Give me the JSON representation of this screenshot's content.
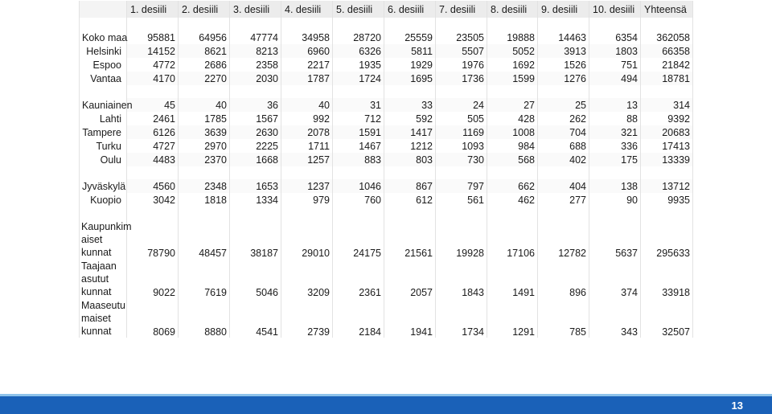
{
  "table": {
    "headers": [
      "1. desiili",
      "2. desiili",
      "3. desiili",
      "4. desiili",
      "5. desiili",
      "6. desiili",
      "7. desiili",
      "8. desiili",
      "9. desiili",
      "10. desiili",
      "Yhteensä"
    ],
    "groups": [
      [
        {
          "label": "Koko maa",
          "values": [
            "95881",
            "64956",
            "47774",
            "34958",
            "28720",
            "25559",
            "23505",
            "19888",
            "14463",
            "6354",
            "362058"
          ]
        },
        {
          "label": "Helsinki",
          "values": [
            "14152",
            "8621",
            "8213",
            "6960",
            "6326",
            "5811",
            "5507",
            "5052",
            "3913",
            "1803",
            "66358"
          ]
        },
        {
          "label": "Espoo",
          "values": [
            "4772",
            "2686",
            "2358",
            "2217",
            "1935",
            "1929",
            "1976",
            "1692",
            "1526",
            "751",
            "21842"
          ]
        },
        {
          "label": "Vantaa",
          "values": [
            "4170",
            "2270",
            "2030",
            "1787",
            "1724",
            "1695",
            "1736",
            "1599",
            "1276",
            "494",
            "18781"
          ]
        }
      ],
      [
        {
          "label": "Kauniainen",
          "values": [
            "45",
            "40",
            "36",
            "40",
            "31",
            "33",
            "24",
            "27",
            "25",
            "13",
            "314"
          ]
        },
        {
          "label": "Lahti",
          "values": [
            "2461",
            "1785",
            "1567",
            "992",
            "712",
            "592",
            "505",
            "428",
            "262",
            "88",
            "9392"
          ]
        },
        {
          "label": "Tampere",
          "values": [
            "6126",
            "3639",
            "2630",
            "2078",
            "1591",
            "1417",
            "1169",
            "1008",
            "704",
            "321",
            "20683"
          ]
        },
        {
          "label": "Turku",
          "values": [
            "4727",
            "2970",
            "2225",
            "1711",
            "1467",
            "1212",
            "1093",
            "984",
            "688",
            "336",
            "17413"
          ]
        },
        {
          "label": "Oulu",
          "values": [
            "4483",
            "2370",
            "1668",
            "1257",
            "883",
            "803",
            "730",
            "568",
            "402",
            "175",
            "13339"
          ]
        }
      ],
      [
        {
          "label": "Jyväskylä",
          "values": [
            "4560",
            "2348",
            "1653",
            "1237",
            "1046",
            "867",
            "797",
            "662",
            "404",
            "138",
            "13712"
          ]
        },
        {
          "label": "Kuopio",
          "values": [
            "3042",
            "1818",
            "1334",
            "979",
            "760",
            "612",
            "561",
            "462",
            "277",
            "90",
            "9935"
          ]
        }
      ]
    ],
    "tall_rows": [
      {
        "label": "Kaupunkim aiset kunnat",
        "values": [
          "78790",
          "48457",
          "38187",
          "29010",
          "24175",
          "21561",
          "19928",
          "17106",
          "12782",
          "5637",
          "295633"
        ]
      },
      {
        "label": "Taajaan asutut kunnat",
        "values": [
          "9022",
          "7619",
          "5046",
          "3209",
          "2361",
          "2057",
          "1843",
          "1491",
          "896",
          "374",
          "33918"
        ]
      },
      {
        "label": "Maaseutu maiset kunnat",
        "values": [
          "8069",
          "8880",
          "4541",
          "2739",
          "2184",
          "1941",
          "1734",
          "1291",
          "785",
          "343",
          "32507"
        ]
      }
    ]
  },
  "footer": {
    "page_number": "13",
    "bar_color": "#1a61b8"
  }
}
